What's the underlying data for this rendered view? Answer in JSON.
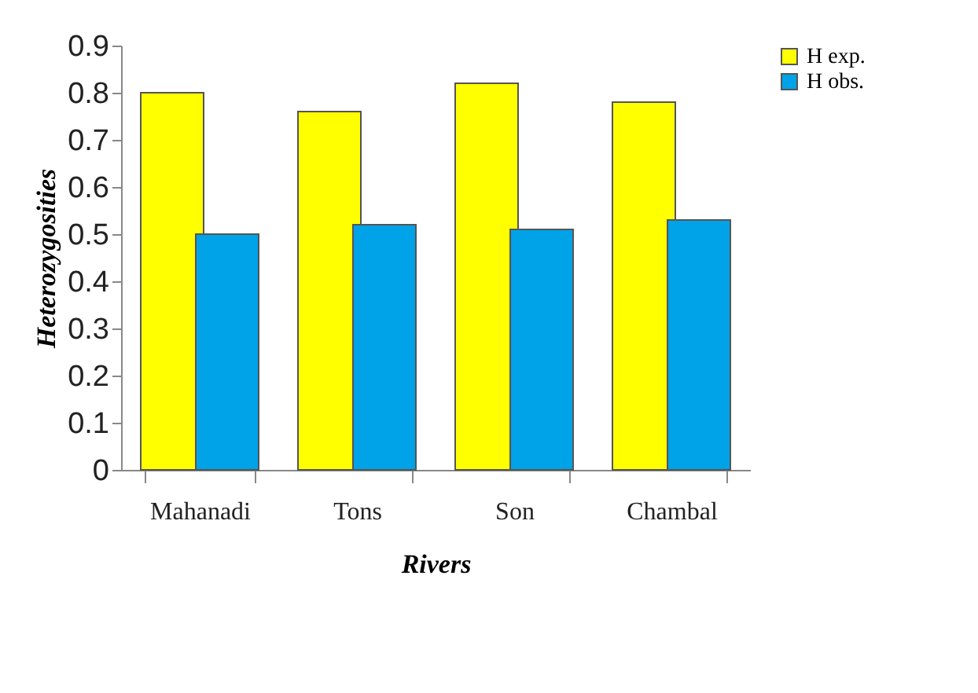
{
  "chart_data": {
    "type": "bar",
    "xlabel": "Rivers",
    "ylabel": "Heterozygosities",
    "categories": [
      "Mahanadi",
      "Tons",
      "Son",
      "Chambal"
    ],
    "series": [
      {
        "name": "H exp.",
        "color": "#ffff00",
        "values": [
          0.8,
          0.76,
          0.82,
          0.78
        ]
      },
      {
        "name": "H obs.",
        "color": "#00a2e8",
        "values": [
          0.5,
          0.52,
          0.51,
          0.53
        ]
      }
    ],
    "ylim": [
      0,
      0.9
    ],
    "yticks": [
      0,
      0.1,
      0.2,
      0.3,
      0.4,
      0.5,
      0.6,
      0.7,
      0.8,
      0.9
    ],
    "grid": false,
    "legend": "top right"
  }
}
